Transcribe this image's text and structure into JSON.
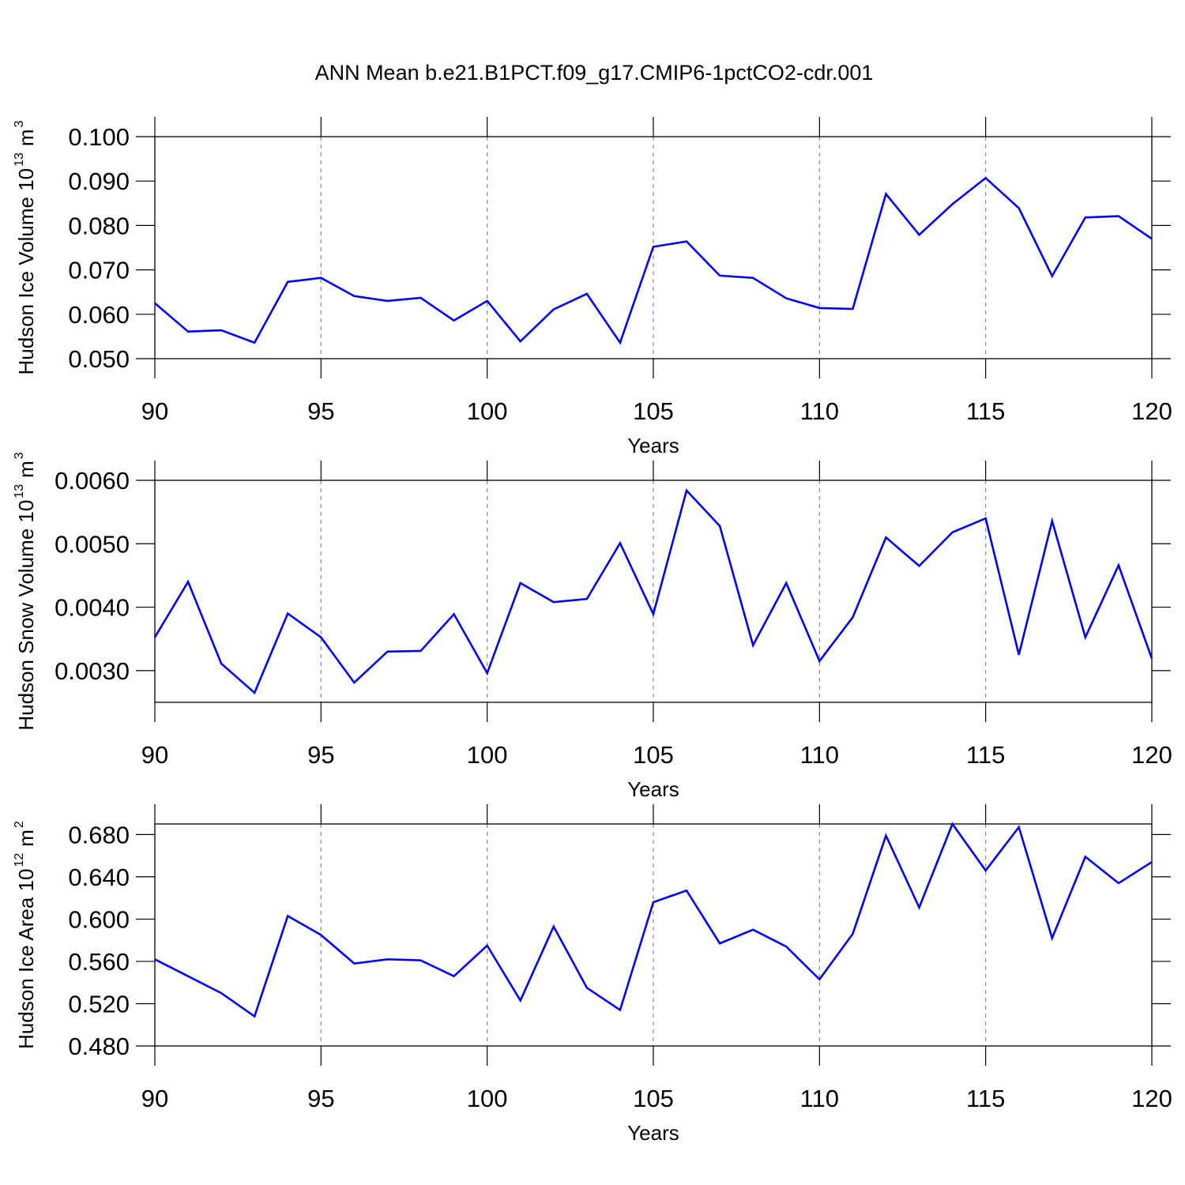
{
  "chart_data": [
    {
      "type": "line",
      "title": "ANN Mean b.e21.B1PCT.f09_g17.CMIP6-1pctCO2-cdr.001",
      "ylabel": [
        "Hudson Ice Volume 10",
        "13",
        "m",
        "3"
      ],
      "xlabel": "Years",
      "x": [
        90,
        91,
        92,
        93,
        94,
        95,
        96,
        97,
        98,
        99,
        100,
        101,
        102,
        103,
        104,
        105,
        106,
        107,
        108,
        109,
        110,
        111,
        112,
        113,
        114,
        115,
        116,
        117,
        118,
        119,
        120
      ],
      "series": [
        {
          "color": "#0000ff",
          "values": [
            0.0625,
            0.0561,
            0.0564,
            0.0536,
            0.0673,
            0.0682,
            0.0641,
            0.063,
            0.0637,
            0.0586,
            0.063,
            0.0539,
            0.0611,
            0.0646,
            0.0536,
            0.0752,
            0.0764,
            0.0687,
            0.0682,
            0.0636,
            0.0614,
            0.0612,
            0.0871,
            0.0779,
            0.0848,
            0.0907,
            0.0839,
            0.0686,
            0.0818,
            0.0821,
            0.077
          ]
        }
      ],
      "xlim": [
        90,
        120
      ],
      "xticks": [
        90,
        95,
        100,
        105,
        110,
        115,
        120
      ],
      "ylim": [
        0.05,
        0.1
      ],
      "yticks": [
        {
          "value": 0.05,
          "label": "0.050"
        },
        {
          "value": 0.06,
          "label": "0.060"
        },
        {
          "value": 0.07,
          "label": "0.070"
        },
        {
          "value": 0.08,
          "label": "0.080"
        },
        {
          "value": 0.09,
          "label": "0.090"
        },
        {
          "value": 0.1,
          "label": "0.100"
        }
      ],
      "grid": true
    },
    {
      "type": "line",
      "ylabel": [
        "Hudson Snow Volume 10",
        "13",
        "m",
        "3"
      ],
      "xlabel": "Years",
      "x": [
        90,
        91,
        92,
        93,
        94,
        95,
        96,
        97,
        98,
        99,
        100,
        101,
        102,
        103,
        104,
        105,
        106,
        107,
        108,
        109,
        110,
        111,
        112,
        113,
        114,
        115,
        116,
        117,
        118,
        119,
        120
      ],
      "series": [
        {
          "color": "#0000ff",
          "values": [
            0.003525,
            0.0044,
            0.00311,
            0.00265,
            0.0039,
            0.003525,
            0.00281,
            0.0033,
            0.00331,
            0.00389,
            0.00296,
            0.00438,
            0.00408,
            0.00413,
            0.00501,
            0.00389,
            0.00584,
            0.00528,
            0.0034,
            0.00438,
            0.00315,
            0.00384,
            0.0051,
            0.00465,
            0.00518,
            0.0054,
            0.00325,
            0.00536,
            0.003525,
            0.00466,
            0.00319
          ]
        }
      ],
      "xlim": [
        90,
        120
      ],
      "xticks": [
        90,
        95,
        100,
        105,
        110,
        115,
        120
      ],
      "ylim": [
        0.0025,
        0.006
      ],
      "yticks": [
        {
          "value": 0.003,
          "label": "0.0030"
        },
        {
          "value": 0.004,
          "label": "0.0040"
        },
        {
          "value": 0.005,
          "label": "0.0050"
        },
        {
          "value": 0.006,
          "label": "0.0060"
        }
      ],
      "grid": true
    },
    {
      "type": "line",
      "ylabel": [
        "Hudson Ice Area 10",
        "12",
        "m",
        "2"
      ],
      "xlabel": "Years",
      "x": [
        90,
        91,
        92,
        93,
        94,
        95,
        96,
        97,
        98,
        99,
        100,
        101,
        102,
        103,
        104,
        105,
        106,
        107,
        108,
        109,
        110,
        111,
        112,
        113,
        114,
        115,
        116,
        117,
        118,
        119,
        120
      ],
      "series": [
        {
          "color": "#0000ff",
          "values": [
            0.562,
            0.546,
            0.53,
            0.508,
            0.603,
            0.585,
            0.558,
            0.562,
            0.561,
            0.546,
            0.575,
            0.523,
            0.593,
            0.535,
            0.514,
            0.616,
            0.627,
            0.577,
            0.59,
            0.574,
            0.543,
            0.586,
            0.679,
            0.611,
            0.69,
            0.646,
            0.687,
            0.582,
            0.659,
            0.634,
            0.654
          ]
        }
      ],
      "xlim": [
        90,
        120
      ],
      "xticks": [
        90,
        95,
        100,
        105,
        110,
        115,
        120
      ],
      "ylim": [
        0.48,
        0.69
      ],
      "yticks": [
        {
          "value": 0.48,
          "label": "0.480"
        },
        {
          "value": 0.52,
          "label": "0.520"
        },
        {
          "value": 0.56,
          "label": "0.560"
        },
        {
          "value": 0.6,
          "label": "0.600"
        },
        {
          "value": 0.64,
          "label": "0.640"
        },
        {
          "value": 0.68,
          "label": "0.680"
        }
      ],
      "grid": true
    }
  ]
}
